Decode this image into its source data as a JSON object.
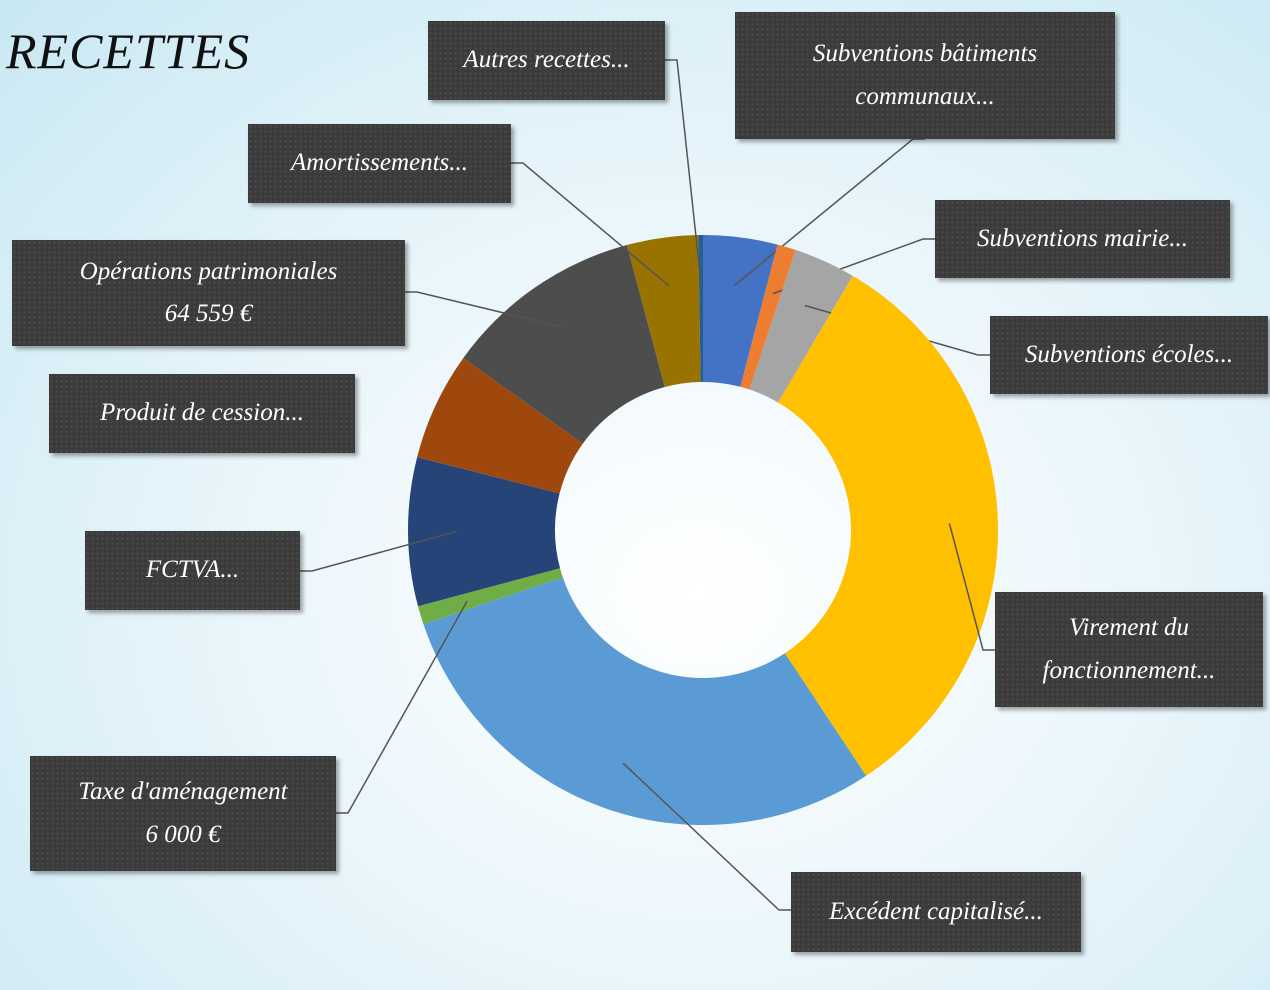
{
  "chart_data": {
    "type": "donut",
    "title": "RECETTES",
    "categories": [
      "Subventions bâtiments communaux...",
      "Subventions mairie...",
      "Subventions écoles...",
      "Virement du fonctionnement...",
      "Excédent capitalisé...",
      "Taxe d'aménagement",
      "FCTVA...",
      "Produit de cession...",
      "Opérations patrimoniales",
      "Amortissements...",
      "Autres recettes..."
    ],
    "values": [
      24000,
      6000,
      20000,
      190000,
      172000,
      6000,
      48000,
      35000,
      64559,
      23000,
      1500
    ],
    "value_labels": [
      null,
      null,
      null,
      null,
      null,
      "6 000 €",
      null,
      null,
      "64 559 €",
      null,
      null
    ],
    "colors": [
      "#4472c4",
      "#ed7d31",
      "#a5a5a5",
      "#ffc000",
      "#5b9bd5",
      "#70ad47",
      "#264478",
      "#9e480e",
      "#4d4d4d",
      "#997300",
      "#255e91"
    ]
  }
}
